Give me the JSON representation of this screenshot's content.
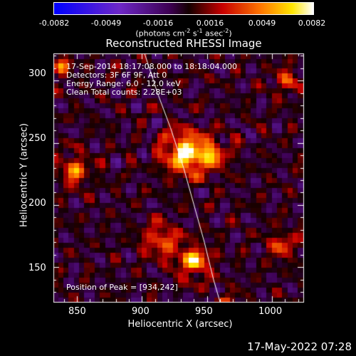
{
  "chart_data": {
    "type": "heatmap",
    "title": "Reconstructed RHESSI Image",
    "xlabel": "Heliocentric X (arcsec)",
    "ylabel": "Heliocentric Y (arcsec)",
    "xlim": [
      832,
      1024
    ],
    "ylim": [
      122,
      322
    ],
    "x_ticks": [
      850,
      900,
      950,
      1000
    ],
    "y_ticks": [
      150,
      200,
      250,
      300
    ],
    "colorbar": {
      "range": [
        -0.0082,
        0.0082
      ],
      "tick_labels": [
        "-0.0082",
        "-0.0049",
        "-0.0016",
        "0.0016",
        "0.0049",
        "0.0082"
      ],
      "unit_main": "(photons cm",
      "unit_exp1": "-2",
      "unit_mid": " s",
      "unit_exp2": "-1",
      "unit_mid2": " asec",
      "unit_exp3": "-2",
      "unit_end": ")"
    },
    "annotations": {
      "time_range": "17-Sep-2014 18:17:08.000 to 18:18:04.000",
      "detectors": "Detectors: 3F 6F 9F, Att 0",
      "energy": "Energy Range: 6.0 - 12.0 keV",
      "clean": "Clean    Total counts: 2.28E+03",
      "peak": "Position of Peak = [934,242]"
    },
    "peak": [
      934,
      242
    ],
    "limb_curve": [
      [
        902,
        322
      ],
      [
        912,
        290
      ],
      [
        922,
        262
      ],
      [
        932,
        230
      ],
      [
        940,
        200
      ],
      [
        948,
        170
      ],
      [
        955,
        140
      ],
      [
        960,
        122
      ]
    ],
    "sources": [
      {
        "x": 934,
        "y": 242,
        "amp": 1.0,
        "sigma": 11
      },
      {
        "x": 955,
        "y": 240,
        "amp": 0.55,
        "sigma": 8
      },
      {
        "x": 940,
        "y": 155,
        "amp": 0.85,
        "sigma": 8
      },
      {
        "x": 848,
        "y": 228,
        "amp": 0.6,
        "sigma": 8
      },
      {
        "x": 915,
        "y": 172,
        "amp": 0.55,
        "sigma": 9
      },
      {
        "x": 838,
        "y": 312,
        "amp": 0.7,
        "sigma": 5
      },
      {
        "x": 1012,
        "y": 300,
        "amp": 0.45,
        "sigma": 7
      },
      {
        "x": 1008,
        "y": 168,
        "amp": 0.5,
        "sigma": 7
      },
      {
        "x": 965,
        "y": 120,
        "amp": 0.35,
        "sigma": 7
      }
    ]
  },
  "footer": {
    "timestamp": "17-May-2022 07:28"
  }
}
